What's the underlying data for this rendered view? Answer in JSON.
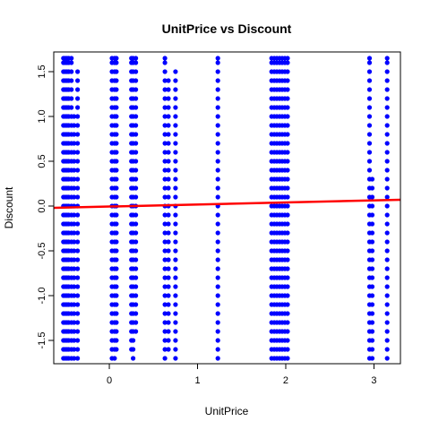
{
  "chart_data": {
    "type": "scatter",
    "title": "UnitPrice vs Discount",
    "xlabel": "UnitPrice",
    "ylabel": "Discount",
    "xlim": [
      -0.63,
      3.3
    ],
    "ylim": [
      -1.76,
      1.72
    ],
    "x_ticks": [
      0,
      1,
      2,
      3
    ],
    "x_tick_labels": [
      "0",
      "1",
      "2",
      "3"
    ],
    "y_ticks": [
      -1.5,
      -1.0,
      -0.5,
      0.0,
      0.5,
      1.0,
      1.5
    ],
    "y_tick_labels": [
      "-1.5",
      "-1.0",
      "-0.5",
      "0.0",
      "0.5",
      "1.0",
      "1.5"
    ],
    "grid": false,
    "point_color": "#0000FF",
    "line_color": "#FF0000",
    "y_levels": [
      -1.7,
      -1.6,
      -1.5,
      -1.4,
      -1.3,
      -1.2,
      -1.1,
      -1.0,
      -0.9,
      -0.8,
      -0.7,
      -0.6,
      -0.5,
      -0.4,
      -0.3,
      -0.2,
      -0.1,
      0.0,
      0.1,
      0.2,
      0.3,
      0.4,
      0.5,
      0.6,
      0.7,
      0.8,
      0.9,
      1.0,
      1.1,
      1.2,
      1.3,
      1.4,
      1.5,
      1.6,
      1.65
    ],
    "point_columns": [
      {
        "x": -0.52,
        "y_range": [
          -1.7,
          1.65
        ]
      },
      {
        "x": -0.5,
        "y_range": [
          -1.7,
          1.65
        ]
      },
      {
        "x": -0.48,
        "y_range": [
          -1.7,
          1.65
        ]
      },
      {
        "x": -0.46,
        "y_range": [
          -1.7,
          1.65
        ]
      },
      {
        "x": -0.43,
        "y_range": [
          -1.7,
          1.65
        ]
      },
      {
        "x": -0.4,
        "y_range": [
          -1.7,
          1.0
        ]
      },
      {
        "x": -0.36,
        "y_range": [
          -1.7,
          1.55
        ]
      },
      {
        "x": 0.03,
        "y_range": [
          -1.7,
          1.65
        ]
      },
      {
        "x": 0.06,
        "y_range": [
          -1.7,
          1.65
        ]
      },
      {
        "x": 0.08,
        "y_range": [
          -1.6,
          1.65
        ]
      },
      {
        "x": 0.25,
        "y_range": [
          -1.6,
          1.65
        ]
      },
      {
        "x": 0.27,
        "y_range": [
          -1.7,
          1.65
        ]
      },
      {
        "x": 0.3,
        "y_range": [
          -1.4,
          1.65
        ]
      },
      {
        "x": 0.63,
        "y_range": [
          -1.7,
          1.65
        ]
      },
      {
        "x": 0.67,
        "y_range": [
          -1.6,
          1.4
        ]
      },
      {
        "x": 0.75,
        "y_range": [
          -1.7,
          1.55
        ]
      },
      {
        "x": 1.23,
        "y_range": [
          -1.7,
          1.65
        ]
      },
      {
        "x": 1.84,
        "y_range": [
          -1.7,
          1.65
        ]
      },
      {
        "x": 1.87,
        "y_range": [
          -1.7,
          1.65
        ]
      },
      {
        "x": 1.9,
        "y_range": [
          -1.7,
          1.65
        ]
      },
      {
        "x": 1.93,
        "y_range": [
          -1.7,
          1.65
        ]
      },
      {
        "x": 1.96,
        "y_range": [
          -1.7,
          1.65
        ]
      },
      {
        "x": 1.99,
        "y_range": [
          -1.7,
          1.65
        ]
      },
      {
        "x": 2.02,
        "y_range": [
          -1.7,
          1.65
        ]
      },
      {
        "x": 2.95,
        "y_range": [
          -1.7,
          1.65
        ]
      },
      {
        "x": 2.98,
        "y_range": [
          -1.7,
          0.3
        ]
      },
      {
        "x": 3.15,
        "y_range": [
          -1.7,
          1.65
        ]
      }
    ],
    "regression_line": {
      "x": [
        -0.63,
        3.3
      ],
      "y": [
        -0.02,
        0.07
      ]
    }
  }
}
